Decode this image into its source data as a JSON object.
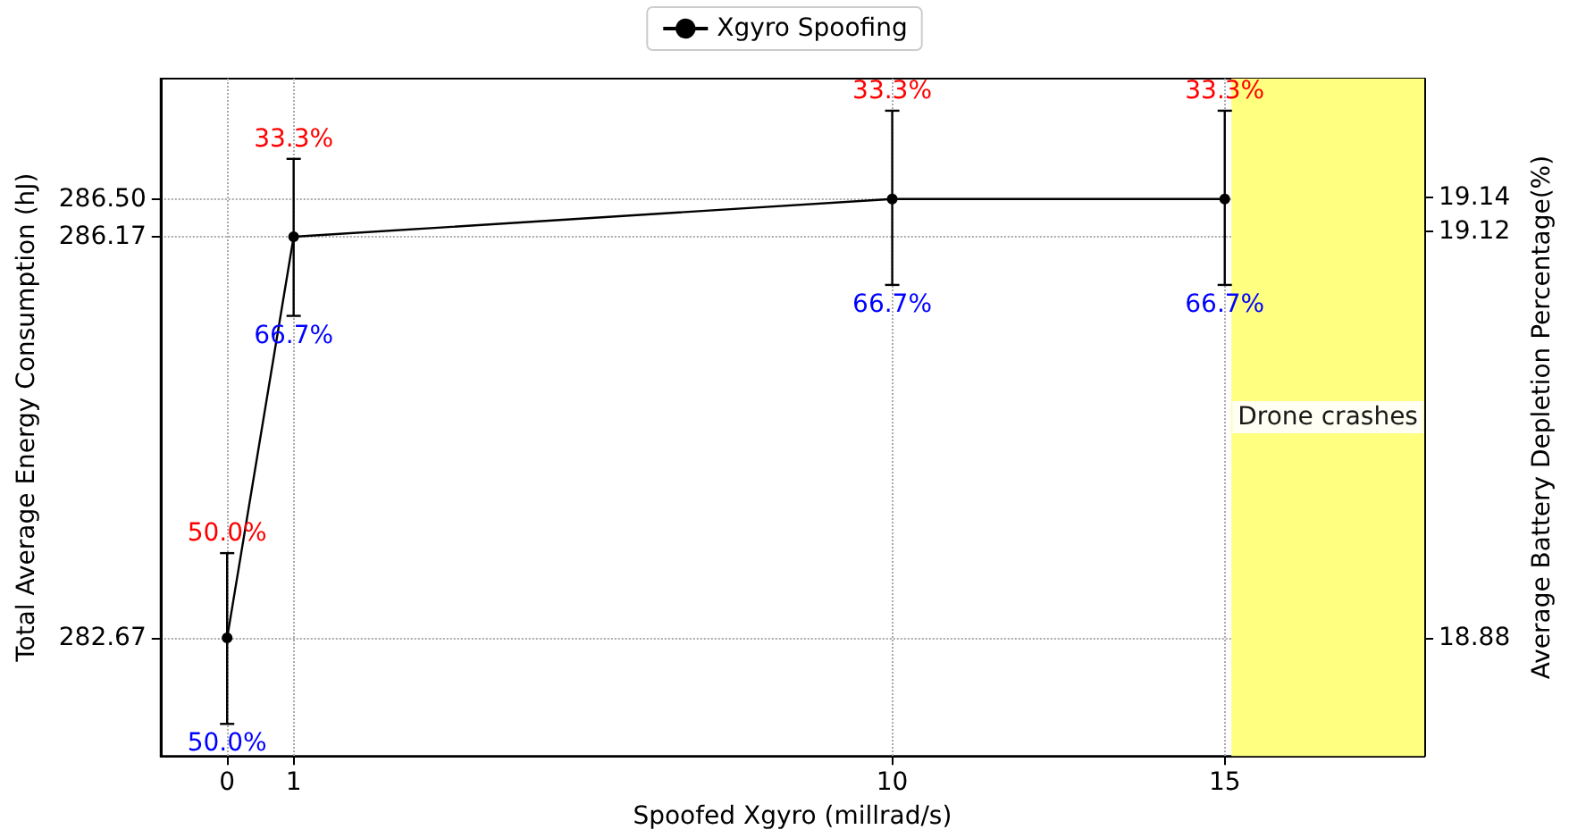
{
  "chart_data": {
    "type": "line",
    "xlabel": "Spoofed Xgyro (millrad/s)",
    "ylabel": "Total Average Energy Consumption (hJ)",
    "y2label": "Average Battery Depletion Percentage(%)",
    "x": [
      0,
      1,
      10,
      15
    ],
    "series": [
      {
        "name": "Xgyro Spoofing",
        "color": "#000000",
        "values": [
          282.67,
          286.17,
          286.5,
          286.5
        ],
        "errors": [
          [
            281.92,
            283.41
          ],
          [
            285.48,
            286.85
          ],
          [
            285.75,
            287.27
          ],
          [
            285.75,
            287.27
          ]
        ]
      }
    ],
    "xlim": [
      -1,
      18
    ],
    "xticks": [
      0,
      1,
      10,
      15
    ],
    "ylim": [
      281.64,
      287.55
    ],
    "yticks": [
      {
        "value": 282.67,
        "label": "282.67"
      },
      {
        "value": 286.17,
        "label": "286.17"
      },
      {
        "value": 286.5,
        "label": "286.50"
      }
    ],
    "y2lim": [
      18.81,
      19.21
    ],
    "y2ticks": [
      18.88,
      19.12,
      19.14
    ],
    "bands": [
      {
        "axis": "x",
        "from": 15.1,
        "to": 18,
        "label": "Drone crashes",
        "color": "#ffff80"
      }
    ],
    "annotations": [
      {
        "text": "50.0%",
        "x": 0,
        "y": 283.41
      },
      {
        "text": "50.0%",
        "x": 0,
        "y": 281.92
      },
      {
        "text": "33.3%",
        "x": 1,
        "y": 286.85
      },
      {
        "text": "66.7%",
        "x": 1,
        "y": 285.48
      },
      {
        "text": "33.3%",
        "x": 10,
        "y": 287.27
      },
      {
        "text": "66.7%",
        "x": 10,
        "y": 285.75
      },
      {
        "text": "33.3%",
        "x": 15,
        "y": 287.27
      },
      {
        "text": "66.7%",
        "x": 15,
        "y": 285.75
      }
    ],
    "grid": true,
    "legend": "top",
    "marker": "circle",
    "line_style": "solid"
  }
}
